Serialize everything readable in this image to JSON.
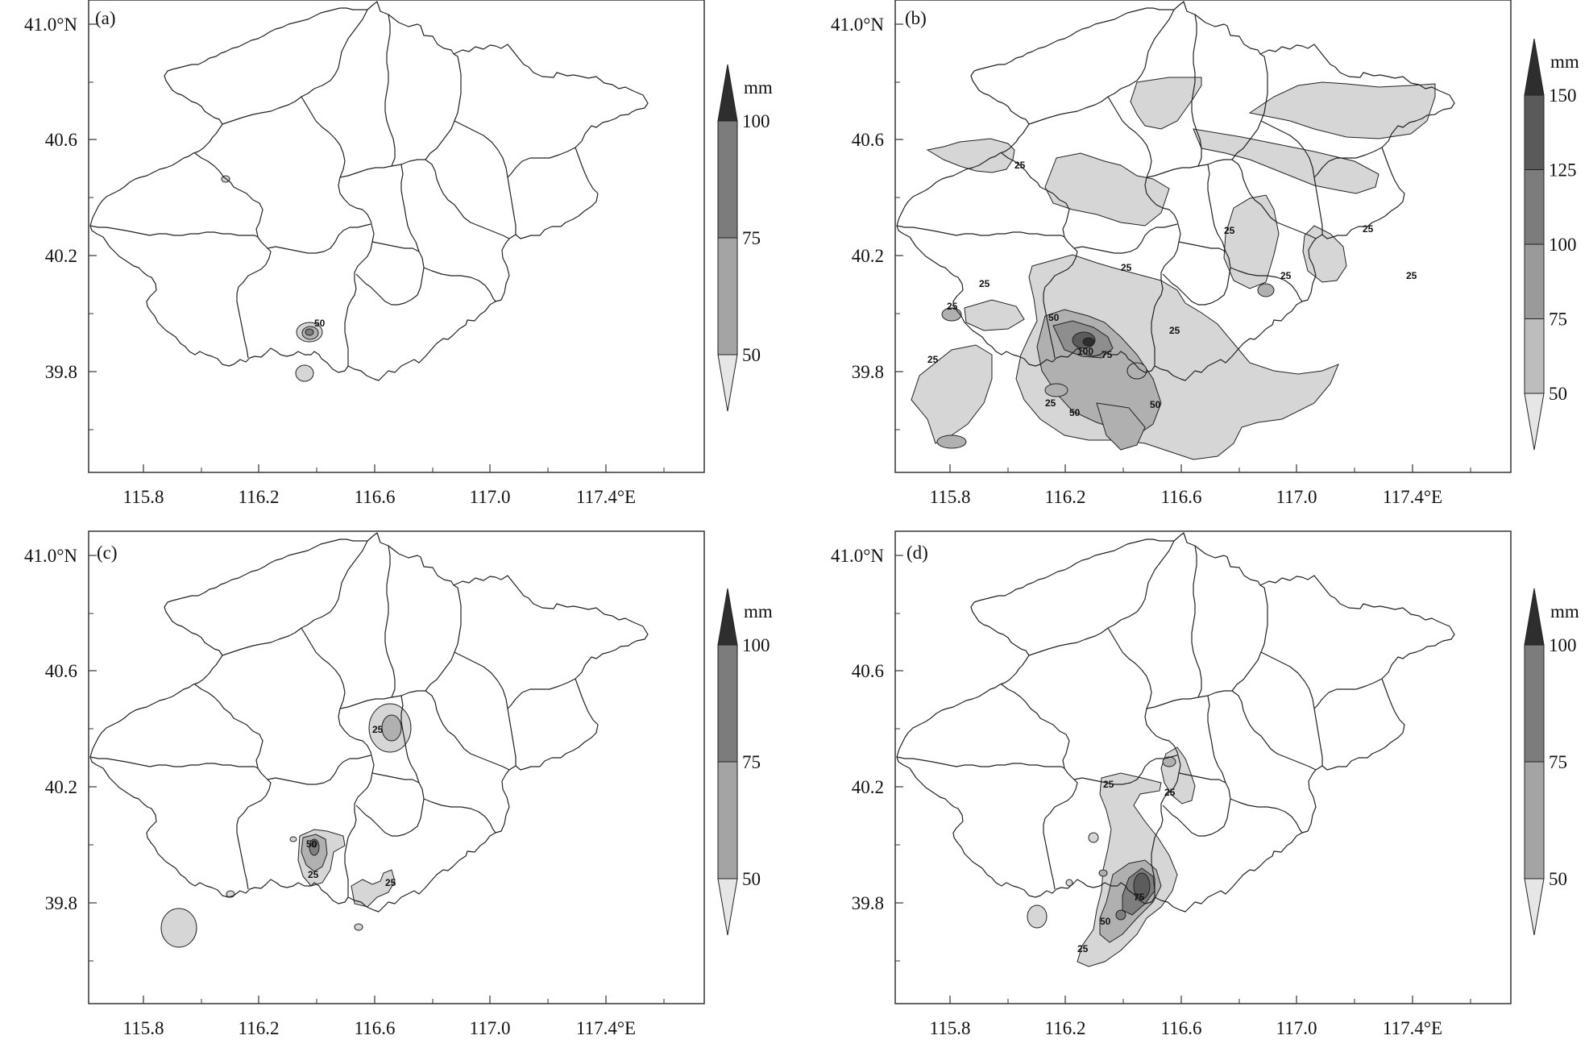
{
  "figure": {
    "panels": [
      {
        "id": "a",
        "label": "(a)",
        "y_ticks": [
          "41.0°N",
          "40.6",
          "40.2",
          "39.8"
        ],
        "x_ticks": [
          "115.8",
          "116.2",
          "116.6",
          "117.0",
          "117.4°E"
        ],
        "colorbar": {
          "unit": "mm",
          "levels": [
            "100",
            "75",
            "50"
          ],
          "colors": [
            "#2e2e2e",
            "#7c7c7c",
            "#a4a4a4",
            "#e6e6e6"
          ]
        },
        "contour_labels": [
          "50"
        ]
      },
      {
        "id": "b",
        "label": "(b)",
        "y_ticks": [
          "41.0°N",
          "40.6",
          "40.2",
          "39.8"
        ],
        "x_ticks": [
          "115.8",
          "116.2",
          "116.6",
          "117.0",
          "117.4°E"
        ],
        "colorbar": {
          "unit": "mm",
          "levels": [
            "150",
            "125",
            "100",
            "75",
            "50"
          ],
          "colors": [
            "#2e2e2e",
            "#5a5a5a",
            "#7c7c7c",
            "#9a9a9a",
            "#bdbdbd",
            "#e6e6e6"
          ]
        },
        "contour_labels": [
          "25",
          "25",
          "25",
          "25",
          "25",
          "25",
          "25",
          "25",
          "25",
          "50",
          "50",
          "50",
          "75",
          "100",
          "25",
          "25"
        ]
      },
      {
        "id": "c",
        "label": "(c)",
        "y_ticks": [
          "41.0°N",
          "40.6",
          "40.2",
          "39.8"
        ],
        "x_ticks": [
          "115.8",
          "116.2",
          "116.6",
          "117.0",
          "117.4°E"
        ],
        "colorbar": {
          "unit": "mm",
          "levels": [
            "100",
            "75",
            "50"
          ],
          "colors": [
            "#2e2e2e",
            "#7c7c7c",
            "#a4a4a4",
            "#e6e6e6"
          ]
        },
        "contour_labels": [
          "25",
          "50",
          "25",
          "25"
        ]
      },
      {
        "id": "d",
        "label": "(d)",
        "y_ticks": [
          "41.0°N",
          "40.6",
          "40.2",
          "39.8"
        ],
        "x_ticks": [
          "115.8",
          "116.2",
          "116.6",
          "117.0",
          "117.4°E"
        ],
        "colorbar": {
          "unit": "mm",
          "levels": [
            "100",
            "75",
            "50"
          ],
          "colors": [
            "#2e2e2e",
            "#7c7c7c",
            "#a4a4a4",
            "#e6e6e6"
          ]
        },
        "contour_labels": [
          "25",
          "25",
          "25",
          "50",
          "75"
        ]
      }
    ]
  }
}
